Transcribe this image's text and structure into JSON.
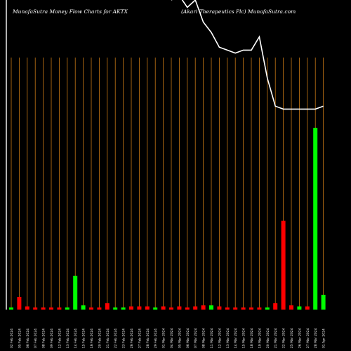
{
  "header": {
    "left": "MunafaSutra  Money Flow  Charts for AKTX",
    "right": "(Akari  Therapeutics Plc) MunafaSutra.com"
  },
  "colors": {
    "background": "#000000",
    "up": "#00ff00",
    "down": "#ff0000",
    "grid": "#c87814",
    "line": "#ffffff",
    "text": "#ffffff"
  },
  "chart_data": {
    "type": "bar",
    "title": "",
    "grid": "vertical",
    "categories": [
      "02 Feb 2024",
      "05 Feb 2024",
      "06 Feb 2024",
      "07 Feb 2024",
      "08 Feb 2024",
      "09 Feb 2024",
      "12 Feb 2024",
      "13 Feb 2024",
      "14 Feb 2024",
      "15 Feb 2024",
      "16 Feb 2024",
      "20 Feb 2024",
      "21 Feb 2024",
      "22 Feb 2024",
      "23 Feb 2024",
      "26 Feb 2024",
      "27 Feb 2024",
      "28 Feb 2024",
      "29 Feb 2024",
      "01 Mar 2024",
      "04 Mar 2024",
      "05 Mar 2024",
      "06 Mar 2024",
      "07 Mar 2024",
      "08 Mar 2024",
      "11 Mar 2024",
      "12 Mar 2024",
      "13 Mar 2024",
      "14 Mar 2024",
      "15 Mar 2024",
      "18 Mar 2024",
      "19 Mar 2024",
      "20 Mar 2024",
      "21 Mar 2024",
      "22 Mar 2024",
      "25 Mar 2024",
      "26 Mar 2024",
      "27 Mar 2024",
      "28 Mar 2024",
      "01 Apr 2024"
    ],
    "tick_labels": [
      "02 Feb 2024",
      "05 Feb 2024",
      "06 Feb 2024",
      "07 Feb 2024",
      "08 Feb 2024",
      "09 Feb 2024",
      "12 Feb 2024",
      "13 Feb 2024",
      "14 Feb 2024",
      "15 Feb 2024",
      "16 Feb 2024",
      "20 Feb 2024",
      "21 Feb 2024",
      "22 Feb 2024",
      "23 Feb 2024",
      "26 Feb 2024",
      "27 Feb 2024",
      "28 Feb 2024",
      "29 Feb 2024",
      "01 Mar 2024",
      "04 Mar 2024",
      "05 Mar 2024",
      "06 Mar 2024",
      "07 Mar 2024",
      "08 Mar 2024",
      "11 Mar 2024",
      "12 Mar 2024",
      "13 Mar 2024",
      "14 Mar 2024",
      "15 Mar 2024",
      "18 Mar 2024",
      "19 Mar 2024",
      "20 Mar 2024",
      "21 Mar 2024",
      "22 Mar 2024",
      "25 Mar 2024",
      "26 Mar 2024",
      "27 Mar 2024",
      "28 Mar 2024",
      "01 Apr 2024"
    ],
    "volumes": [
      1,
      6,
      1.5,
      1,
      1,
      1,
      1,
      1,
      16,
      2,
      1,
      1,
      3,
      1,
      1,
      1.5,
      1.5,
      1.5,
      1,
      1.5,
      1,
      1.5,
      1,
      1.5,
      2,
      2,
      1.5,
      1,
      1,
      1,
      1,
      1,
      1,
      3,
      42,
      2,
      1.5,
      1.5,
      86,
      7
    ],
    "direction": [
      "up",
      "down",
      "down",
      "down",
      "down",
      "down",
      "down",
      "up",
      "up",
      "up",
      "down",
      "down",
      "down",
      "up",
      "up",
      "down",
      "down",
      "down",
      "up",
      "down",
      "down",
      "down",
      "down",
      "down",
      "down",
      "up",
      "down",
      "down",
      "down",
      "down",
      "down",
      "down",
      "up",
      "down",
      "down",
      "down",
      "up",
      "down",
      "up",
      "up"
    ],
    "price_line": [
      null,
      null,
      null,
      null,
      null,
      null,
      null,
      null,
      null,
      null,
      null,
      null,
      null,
      null,
      null,
      null,
      null,
      null,
      null,
      null,
      100,
      103,
      95,
      100,
      85,
      78,
      68,
      66,
      64,
      66,
      66,
      75,
      47,
      28,
      26,
      26,
      26,
      26,
      26,
      28
    ],
    "ylim_volume": [
      0,
      100
    ],
    "ylim_price": [
      0,
      100
    ]
  }
}
